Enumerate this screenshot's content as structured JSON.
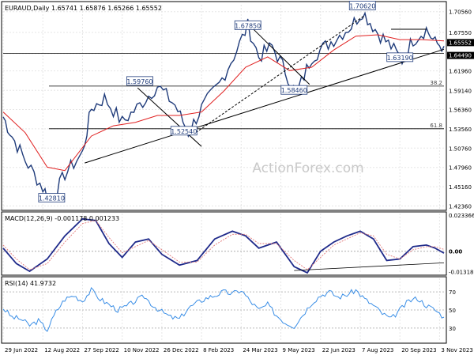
{
  "chart_data": [
    {
      "type": "candlestick",
      "title": "EURAUD,Daily",
      "ohlc_readout": [
        "1.65741",
        "1.65876",
        "1.65266",
        "1.65552"
      ],
      "y_ticks": [
        1.7056,
        1.6755,
        1.6449,
        1.6196,
        1.5914,
        1.5636,
        1.5356,
        1.5076,
        1.4796,
        1.4516,
        1.4236
      ],
      "y_tick_labels": [
        "1.70560",
        "1.67550",
        "1.61960",
        "1.59140",
        "1.56360",
        "1.53560",
        "1.50760",
        "1.47960",
        "1.45160",
        "1.42360"
      ],
      "ylim": [
        1.4196,
        1.7156
      ],
      "x_tick_labels": [
        "29 Jun 2022",
        "12 Aug 2022",
        "27 Sep 2022",
        "10 Nov 2022",
        "26 Dec 2022",
        "8 Feb 2023",
        "24 Mar 2023",
        "9 May 2023",
        "22 Jun 2023",
        "7 Aug 2023",
        "20 Sep 2023",
        "3 Nov 2023"
      ],
      "x_tick_positions": [
        0,
        0.09,
        0.18,
        0.27,
        0.36,
        0.45,
        0.54,
        0.63,
        0.72,
        0.81,
        0.9,
        0.99
      ],
      "price_path": [
        [
          0,
          1.553
        ],
        [
          0.02,
          1.525
        ],
        [
          0.05,
          1.49
        ],
        [
          0.09,
          1.45
        ],
        [
          0.11,
          1.43
        ],
        [
          0.14,
          1.47
        ],
        [
          0.18,
          1.5
        ],
        [
          0.2,
          1.565
        ],
        [
          0.23,
          1.58
        ],
        [
          0.27,
          1.545
        ],
        [
          0.31,
          1.57
        ],
        [
          0.35,
          1.598
        ],
        [
          0.39,
          1.57
        ],
        [
          0.42,
          1.53
        ],
        [
          0.45,
          1.565
        ],
        [
          0.49,
          1.6
        ],
        [
          0.53,
          1.65
        ],
        [
          0.555,
          1.685
        ],
        [
          0.58,
          1.64
        ],
        [
          0.61,
          1.655
        ],
        [
          0.64,
          1.62
        ],
        [
          0.665,
          1.585
        ],
        [
          0.7,
          1.64
        ],
        [
          0.75,
          1.665
        ],
        [
          0.79,
          1.685
        ],
        [
          0.815,
          1.706
        ],
        [
          0.85,
          1.675
        ],
        [
          0.88,
          1.655
        ],
        [
          0.905,
          1.635
        ],
        [
          0.93,
          1.665
        ],
        [
          0.96,
          1.68
        ],
        [
          0.98,
          1.66
        ],
        [
          1.0,
          1.6555
        ]
      ],
      "ma_path": [
        [
          0,
          1.56
        ],
        [
          0.05,
          1.53
        ],
        [
          0.1,
          1.48
        ],
        [
          0.14,
          1.475
        ],
        [
          0.2,
          1.525
        ],
        [
          0.25,
          1.54
        ],
        [
          0.3,
          1.545
        ],
        [
          0.35,
          1.555
        ],
        [
          0.4,
          1.555
        ],
        [
          0.45,
          1.56
        ],
        [
          0.5,
          1.59
        ],
        [
          0.55,
          1.625
        ],
        [
          0.6,
          1.64
        ],
        [
          0.65,
          1.62
        ],
        [
          0.7,
          1.625
        ],
        [
          0.75,
          1.65
        ],
        [
          0.8,
          1.67
        ],
        [
          0.85,
          1.672
        ],
        [
          0.9,
          1.665
        ],
        [
          0.95,
          1.665
        ],
        [
          1.0,
          1.663
        ]
      ],
      "trendlines": [
        {
          "from": [
            0.185,
            1.486
          ],
          "to": [
            1.0,
            1.651
          ]
        },
        {
          "from": [
            0.43,
            1.527
          ],
          "to": [
            0.82,
            1.7
          ]
        },
        {
          "from": [
            0.305,
            1.595
          ],
          "to": [
            0.45,
            1.51
          ]
        },
        {
          "from": [
            0.56,
            1.685
          ],
          "to": [
            0.695,
            1.6
          ]
        },
        {
          "from": [
            0.88,
            1.68
          ],
          "to": [
            0.96,
            1.68
          ]
        }
      ],
      "horizontal_levels": [
        {
          "value": 1.6449,
          "label": "1.64490"
        },
        {
          "value": 1.5976,
          "label": "38.2"
        },
        {
          "value": 1.5357,
          "label": "61.8"
        }
      ],
      "annotations": [
        {
          "text": "1.70620",
          "x": 0.815,
          "y": 1.707
        },
        {
          "text": "1.67850",
          "x": 0.555,
          "y": 1.6785
        },
        {
          "text": "1.63190",
          "x": 0.9,
          "y": 1.632
        },
        {
          "text": "1.58460",
          "x": 0.66,
          "y": 1.5846
        },
        {
          "text": "1.59760",
          "x": 0.31,
          "y": 1.5976
        },
        {
          "text": "1.52540",
          "x": 0.41,
          "y": 1.5254
        },
        {
          "text": "1.42810",
          "x": 0.11,
          "y": 1.4281
        }
      ],
      "current_price_tags": [
        "1.65552",
        "1.64490"
      ],
      "colors": {
        "price": "#1f3b7a",
        "ma": "#e02020",
        "trend": "#000000",
        "tag_bg": "#000000",
        "tag_fg": "#ffffff"
      }
    },
    {
      "type": "line",
      "title": "MACD(12,26,9) -0.001178 0.001233",
      "y_tick_labels": [
        "0.023366",
        "0.00",
        "-0.013186"
      ],
      "y_tick_values": [
        0.023366,
        0.0,
        -0.013186
      ],
      "ylim": [
        -0.0145,
        0.0245
      ],
      "series": [
        {
          "values": [
            [
              0,
              0.002
            ],
            [
              0.03,
              -0.008
            ],
            [
              0.06,
              -0.013
            ],
            [
              0.1,
              -0.005
            ],
            [
              0.14,
              0.01
            ],
            [
              0.18,
              0.021
            ],
            [
              0.21,
              0.02
            ],
            [
              0.24,
              0.005
            ],
            [
              0.27,
              -0.004
            ],
            [
              0.3,
              0.006
            ],
            [
              0.33,
              0.008
            ],
            [
              0.36,
              -0.002
            ],
            [
              0.4,
              -0.009
            ],
            [
              0.44,
              -0.006
            ],
            [
              0.48,
              0.008
            ],
            [
              0.52,
              0.013
            ],
            [
              0.55,
              0.01
            ],
            [
              0.58,
              0.002
            ],
            [
              0.62,
              0.006
            ],
            [
              0.66,
              -0.01
            ],
            [
              0.69,
              -0.014
            ],
            [
              0.72,
              0.0
            ],
            [
              0.75,
              0.006
            ],
            [
              0.78,
              0.01
            ],
            [
              0.81,
              0.013
            ],
            [
              0.84,
              0.008
            ],
            [
              0.87,
              -0.006
            ],
            [
              0.9,
              -0.005
            ],
            [
              0.93,
              0.003
            ],
            [
              0.96,
              0.004
            ],
            [
              0.98,
              0.002
            ],
            [
              1.0,
              -0.0012
            ]
          ]
        },
        {
          "values": [
            [
              0,
              0.004
            ],
            [
              0.03,
              -0.005
            ],
            [
              0.06,
              -0.012
            ],
            [
              0.1,
              -0.008
            ],
            [
              0.14,
              0.006
            ],
            [
              0.18,
              0.018
            ],
            [
              0.21,
              0.02
            ],
            [
              0.24,
              0.009
            ],
            [
              0.27,
              -0.001
            ],
            [
              0.3,
              0.003
            ],
            [
              0.33,
              0.007
            ],
            [
              0.36,
              0.001
            ],
            [
              0.4,
              -0.007
            ],
            [
              0.44,
              -0.007
            ],
            [
              0.48,
              0.004
            ],
            [
              0.52,
              0.011
            ],
            [
              0.55,
              0.011
            ],
            [
              0.58,
              0.005
            ],
            [
              0.62,
              0.005
            ],
            [
              0.66,
              -0.006
            ],
            [
              0.69,
              -0.012
            ],
            [
              0.72,
              -0.004
            ],
            [
              0.75,
              0.004
            ],
            [
              0.78,
              0.008
            ],
            [
              0.81,
              0.012
            ],
            [
              0.84,
              0.01
            ],
            [
              0.87,
              -0.002
            ],
            [
              0.9,
              -0.005
            ],
            [
              0.93,
              0.001
            ],
            [
              0.96,
              0.003
            ],
            [
              0.98,
              0.003
            ],
            [
              1.0,
              0.0012
            ]
          ]
        }
      ],
      "trendline": {
        "from": [
          0.66,
          -0.0125
        ],
        "to": [
          1.0,
          -0.0075
        ]
      }
    },
    {
      "type": "line",
      "title": "RSI(14) 41.9732",
      "y_tick_labels": [
        "70",
        "50",
        "30"
      ],
      "y_tick_values": [
        70,
        50,
        30
      ],
      "ylim": [
        15,
        85
      ],
      "series": [
        {
          "values": [
            [
              0,
              52
            ],
            [
              0.02,
              42
            ],
            [
              0.04,
              40
            ],
            [
              0.06,
              33
            ],
            [
              0.08,
              38
            ],
            [
              0.1,
              28
            ],
            [
              0.12,
              48
            ],
            [
              0.14,
              62
            ],
            [
              0.16,
              66
            ],
            [
              0.18,
              60
            ],
            [
              0.2,
              72
            ],
            [
              0.22,
              62
            ],
            [
              0.24,
              56
            ],
            [
              0.26,
              50
            ],
            [
              0.28,
              54
            ],
            [
              0.3,
              60
            ],
            [
              0.32,
              65
            ],
            [
              0.34,
              55
            ],
            [
              0.36,
              48
            ],
            [
              0.38,
              42
            ],
            [
              0.4,
              40
            ],
            [
              0.42,
              52
            ],
            [
              0.44,
              58
            ],
            [
              0.46,
              63
            ],
            [
              0.48,
              66
            ],
            [
              0.5,
              70
            ],
            [
              0.52,
              68
            ],
            [
              0.54,
              72
            ],
            [
              0.56,
              60
            ],
            [
              0.58,
              50
            ],
            [
              0.6,
              56
            ],
            [
              0.62,
              44
            ],
            [
              0.64,
              36
            ],
            [
              0.66,
              32
            ],
            [
              0.68,
              45
            ],
            [
              0.7,
              58
            ],
            [
              0.72,
              66
            ],
            [
              0.74,
              70
            ],
            [
              0.76,
              64
            ],
            [
              0.78,
              67
            ],
            [
              0.8,
              72
            ],
            [
              0.82,
              62
            ],
            [
              0.84,
              55
            ],
            [
              0.86,
              46
            ],
            [
              0.88,
              40
            ],
            [
              0.9,
              50
            ],
            [
              0.92,
              60
            ],
            [
              0.94,
              63
            ],
            [
              0.96,
              55
            ],
            [
              0.98,
              50
            ],
            [
              1.0,
              42
            ]
          ]
        }
      ]
    }
  ],
  "watermark": "ActionForex.com"
}
